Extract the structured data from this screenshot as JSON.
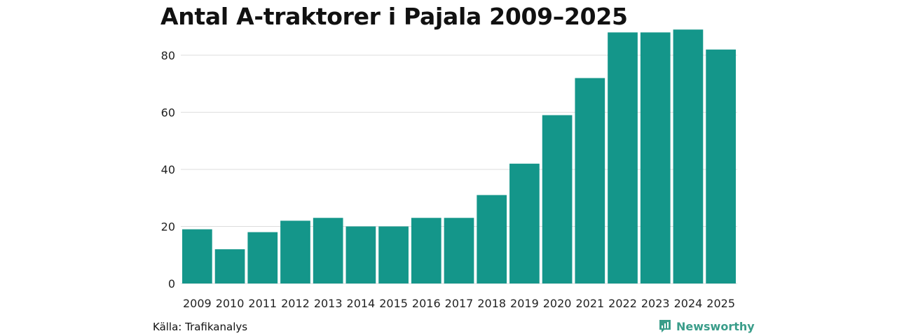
{
  "chart_data": {
    "type": "bar",
    "title": "Antal A-traktorer i Pajala 2009–2025",
    "categories": [
      "2009",
      "2010",
      "2011",
      "2012",
      "2013",
      "2014",
      "2015",
      "2016",
      "2017",
      "2018",
      "2019",
      "2020",
      "2021",
      "2022",
      "2023",
      "2024",
      "2025"
    ],
    "values": [
      19,
      12,
      18,
      22,
      23,
      20,
      20,
      23,
      23,
      31,
      42,
      59,
      72,
      88,
      88,
      89,
      82
    ],
    "ylim": [
      0,
      92
    ],
    "yticks": [
      0,
      20,
      40,
      60,
      80
    ],
    "xlabel": "",
    "ylabel": "",
    "grid": true,
    "bar_color": "#14968a",
    "grid_color": "#dddddd"
  },
  "footer": {
    "source": "Källa: Trafikanalys",
    "brand": "Newsworthy",
    "brand_icon": "newsworthy-logo-icon",
    "brand_color": "#3a9d8a"
  }
}
